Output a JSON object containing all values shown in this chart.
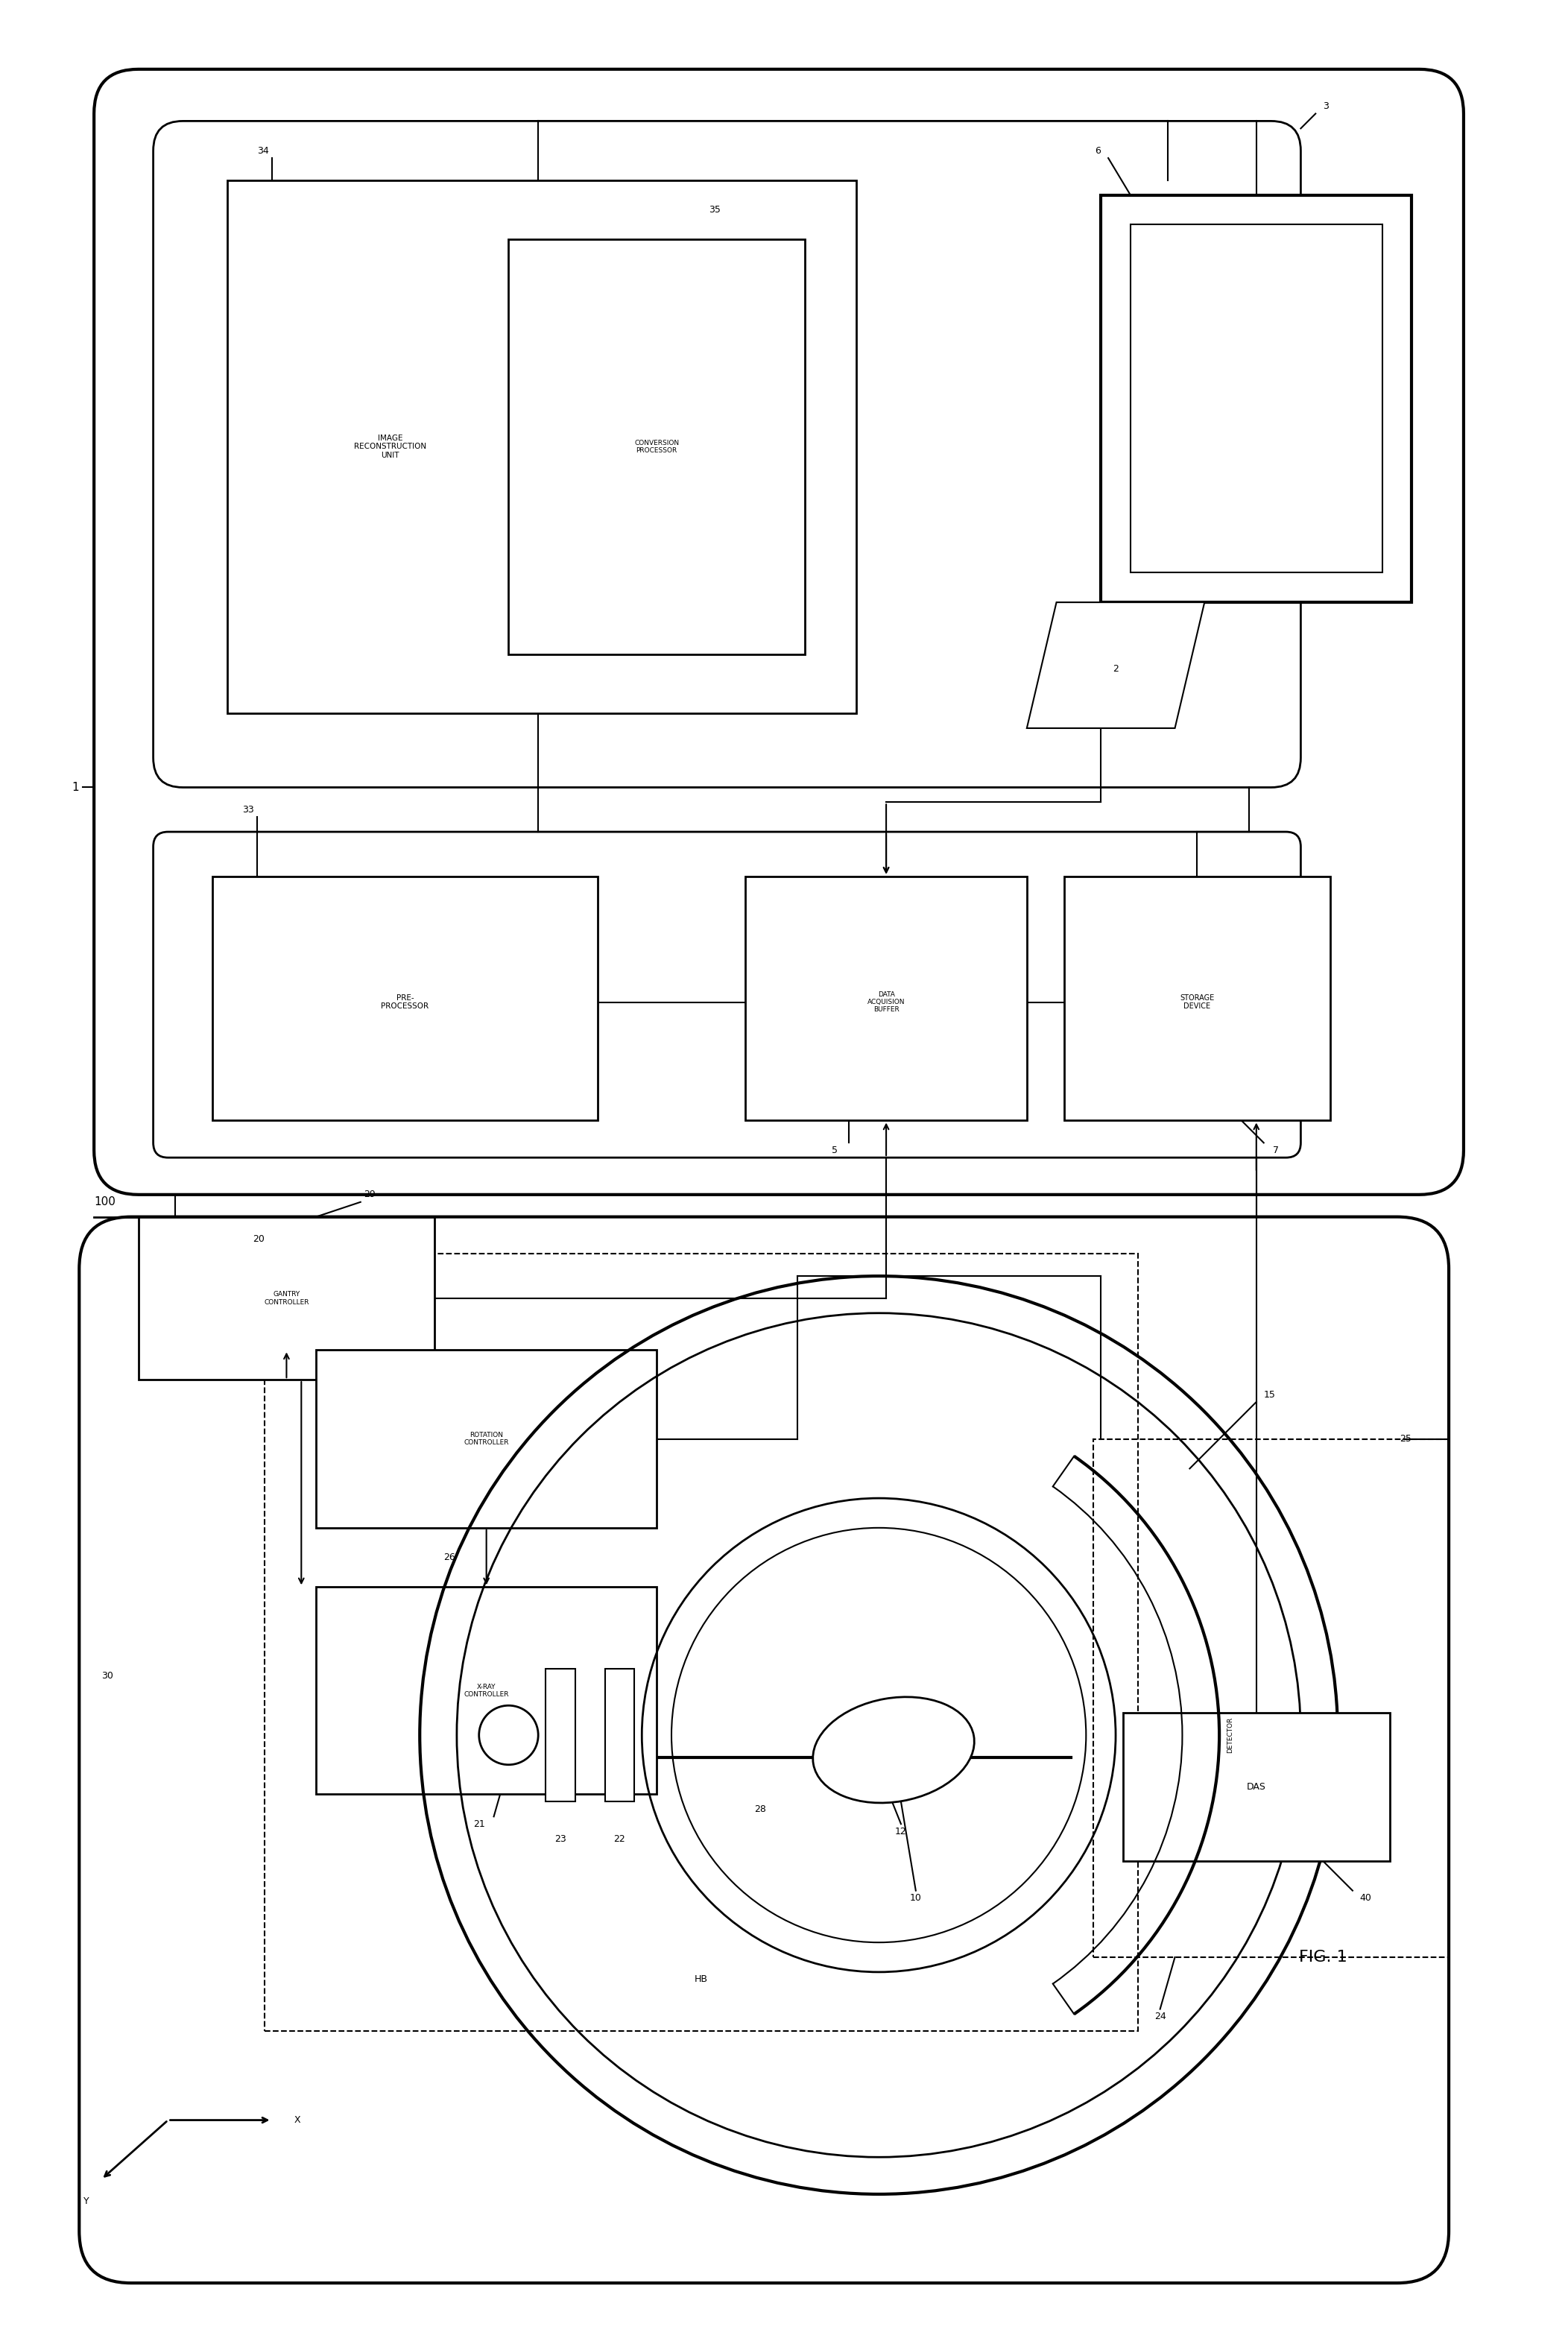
{
  "fig_label": "FIG. 1",
  "bg_color": "#ffffff",
  "line_color": "#000000",
  "text_image_reconstruction": "IMAGE\nRECONSTRUCTION\nUNIT",
  "text_conversion_processor": "CONVERSION\nPROCESSOR",
  "text_preprocessor": "PRE-\nPROCESSOR",
  "text_data_acq": "DATA\nACQUISION\nBUFFER",
  "text_storage": "STORAGE\nDEVICE",
  "text_gantry": "GANTRY\nCONTROLLER",
  "text_rotation": "ROTATION\nCONTROLLER",
  "text_xray": "X-RAY\nCONTROLLER",
  "text_detector": "DETECTOR",
  "text_das": "DAS",
  "text_x": "X",
  "text_y": "Y"
}
